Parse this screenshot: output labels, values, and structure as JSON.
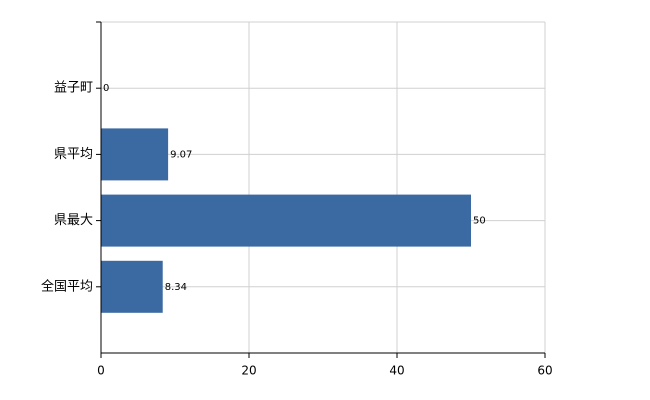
{
  "chart_data": {
    "type": "barh",
    "categories": [
      "益子町",
      "県平均",
      "県最大",
      "全国平均"
    ],
    "values": [
      0,
      9.07,
      50,
      8.34
    ],
    "color": "#3b6aa3",
    "xlim": [
      0,
      60
    ],
    "xticks": [
      0,
      20,
      40,
      60
    ],
    "grid": true
  }
}
